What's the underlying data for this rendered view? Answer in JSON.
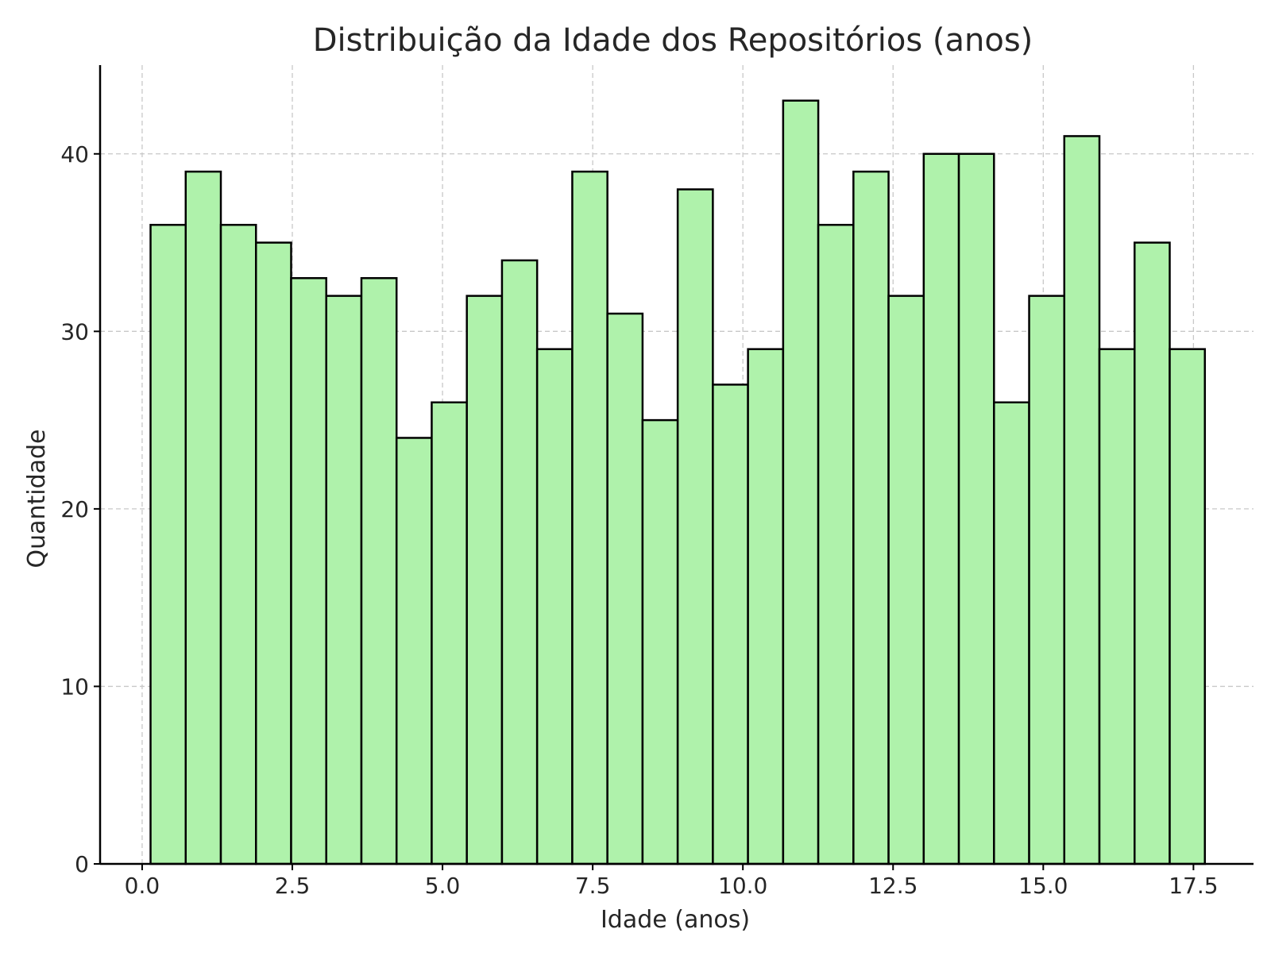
{
  "chart_data": {
    "type": "bar",
    "title": "Distribuição da Idade dos Repositórios (anos)",
    "xlabel": "Idade (anos)",
    "ylabel": "Quantidade",
    "xlim": [
      -0.7,
      18.5
    ],
    "ylim": [
      0,
      45
    ],
    "x_ticks": [
      0.0,
      2.5,
      5.0,
      7.5,
      10.0,
      12.5,
      15.0,
      17.5
    ],
    "x_tick_labels": [
      "0.0",
      "2.5",
      "5.0",
      "7.5",
      "10.0",
      "12.5",
      "15.0",
      "17.5"
    ],
    "y_ticks": [
      0,
      10,
      20,
      30,
      40
    ],
    "y_tick_labels": [
      "0",
      "10",
      "20",
      "30",
      "40"
    ],
    "bin_start": 0.14,
    "bin_width": 0.585,
    "values": [
      36,
      39,
      36,
      35,
      33,
      32,
      33,
      24,
      26,
      32,
      34,
      29,
      39,
      31,
      25,
      38,
      27,
      29,
      43,
      36,
      39,
      32,
      40,
      40,
      26,
      32,
      41,
      29,
      35,
      29
    ],
    "bar_color": "#aff2ab",
    "edge_color": "#000000",
    "grid": true
  }
}
